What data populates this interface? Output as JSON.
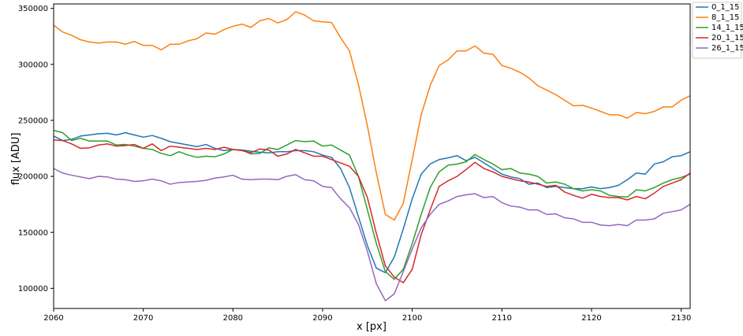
{
  "chart_data": {
    "type": "line",
    "title": "",
    "xlabel": "x [px]",
    "ylabel": "flux [ADU]",
    "xlim": [
      2060,
      2131
    ],
    "ylim": [
      82000,
      354000
    ],
    "xticks": [
      2060,
      2070,
      2080,
      2090,
      2100,
      2110,
      2120,
      2130
    ],
    "yticks": [
      100000,
      150000,
      200000,
      250000,
      300000,
      350000
    ],
    "grid": false,
    "legend_position": "upper-right-outside",
    "x": [
      2060,
      2061,
      2062,
      2063,
      2064,
      2065,
      2066,
      2067,
      2068,
      2069,
      2070,
      2071,
      2072,
      2073,
      2074,
      2075,
      2076,
      2077,
      2078,
      2079,
      2080,
      2081,
      2082,
      2083,
      2084,
      2085,
      2086,
      2087,
      2088,
      2089,
      2090,
      2091,
      2092,
      2093,
      2094,
      2095,
      2096,
      2097,
      2098,
      2099,
      2100,
      2101,
      2102,
      2103,
      2104,
      2105,
      2106,
      2107,
      2108,
      2109,
      2110,
      2111,
      2112,
      2113,
      2114,
      2115,
      2116,
      2117,
      2118,
      2119,
      2120,
      2121,
      2122,
      2123,
      2124,
      2125,
      2126,
      2127,
      2128,
      2129,
      2130,
      2131
    ],
    "series": [
      {
        "name": "0_1_15",
        "color": "#1f77b4",
        "values": [
          236000,
          232000,
          233000,
          236000,
          237000,
          238000,
          238500,
          237000,
          239000,
          237000,
          235000,
          236500,
          234000,
          231000,
          229500,
          228000,
          226500,
          228500,
          225000,
          223000,
          224000,
          223500,
          222500,
          221500,
          221000,
          222000,
          222000,
          223000,
          223000,
          222000,
          219000,
          217000,
          207000,
          190000,
          164000,
          138000,
          118000,
          114000,
          128000,
          153000,
          180000,
          202000,
          211000,
          215000,
          216500,
          218500,
          214000,
          217000,
          212000,
          207000,
          202000,
          199500,
          198000,
          193000,
          194000,
          190000,
          191000,
          190000,
          189000,
          189000,
          190500,
          189000,
          190000,
          192000,
          197000,
          203000,
          202000,
          211000,
          213000,
          217500,
          218500,
          222000
        ]
      },
      {
        "name": "8_1_15",
        "color": "#ff7f0e",
        "values": [
          335000,
          329000,
          326000,
          322000,
          320000,
          319000,
          320000,
          320000,
          318000,
          320500,
          317000,
          317000,
          313000,
          318000,
          318000,
          321000,
          323000,
          328000,
          327000,
          331000,
          334000,
          336000,
          333000,
          339000,
          341000,
          337000,
          340000,
          347000,
          344000,
          339000,
          338000,
          337500,
          324000,
          312000,
          282000,
          245000,
          203000,
          166000,
          161000,
          176000,
          215000,
          255000,
          281000,
          299000,
          304000,
          312000,
          312000,
          316500,
          310000,
          309000,
          299000,
          296500,
          293000,
          288000,
          281000,
          277000,
          273000,
          268000,
          263000,
          263500,
          261000,
          258000,
          255000,
          255000,
          252000,
          257000,
          256000,
          258000,
          262000,
          262000,
          268000,
          272000
        ]
      },
      {
        "name": "14_1_15",
        "color": "#2ca02c",
        "values": [
          241000,
          239000,
          232000,
          234000,
          231500,
          231500,
          231500,
          228000,
          228500,
          227000,
          225000,
          224000,
          220500,
          218500,
          222000,
          219000,
          217000,
          218000,
          217500,
          220000,
          224000,
          223500,
          220000,
          220500,
          225500,
          224000,
          228000,
          232000,
          231000,
          231500,
          227000,
          228000,
          223500,
          219000,
          200000,
          170000,
          140000,
          115000,
          108000,
          117000,
          140000,
          166000,
          190000,
          204000,
          210000,
          211000,
          213000,
          219500,
          215000,
          211000,
          206000,
          207000,
          203000,
          202000,
          200000,
          194000,
          195000,
          193000,
          189000,
          187000,
          188000,
          187000,
          183000,
          182000,
          181500,
          188000,
          187000,
          190000,
          194000,
          197000,
          199000,
          202000
        ]
      },
      {
        "name": "20_1_15",
        "color": "#d62728",
        "values": [
          232500,
          232000,
          229000,
          225000,
          225500,
          228000,
          229000,
          227000,
          227500,
          228500,
          225000,
          229000,
          223000,
          227000,
          226000,
          225000,
          224000,
          225000,
          224000,
          226000,
          224000,
          223000,
          221000,
          224500,
          223500,
          218000,
          220000,
          224000,
          221000,
          218000,
          218000,
          215000,
          212000,
          209000,
          200000,
          181000,
          149000,
          120000,
          110000,
          105000,
          117000,
          148000,
          170000,
          191000,
          196000,
          200000,
          206000,
          212500,
          207000,
          204000,
          200000,
          198000,
          196000,
          195000,
          193000,
          191000,
          192000,
          186000,
          183000,
          180500,
          184000,
          182000,
          181000,
          181000,
          179000,
          182000,
          180000,
          185000,
          191000,
          194000,
          197000,
          203000
        ]
      },
      {
        "name": "26_1_15",
        "color": "#9467bd",
        "values": [
          207000,
          203000,
          201000,
          199500,
          198000,
          200000,
          199500,
          197500,
          197000,
          195500,
          196000,
          197500,
          196000,
          193000,
          194500,
          195000,
          195500,
          196500,
          198500,
          199500,
          201000,
          197500,
          197000,
          197500,
          197500,
          197000,
          200000,
          201500,
          197000,
          196000,
          191000,
          190000,
          180000,
          172000,
          157000,
          133000,
          104000,
          89000,
          95000,
          115000,
          135000,
          154000,
          166000,
          175000,
          178000,
          182000,
          183500,
          184500,
          181000,
          182000,
          176500,
          173500,
          172500,
          170000,
          170000,
          166000,
          166500,
          163000,
          162000,
          159000,
          159000,
          156500,
          156000,
          157000,
          156000,
          161000,
          161000,
          162000,
          167000,
          168500,
          170000,
          175000
        ]
      }
    ]
  }
}
